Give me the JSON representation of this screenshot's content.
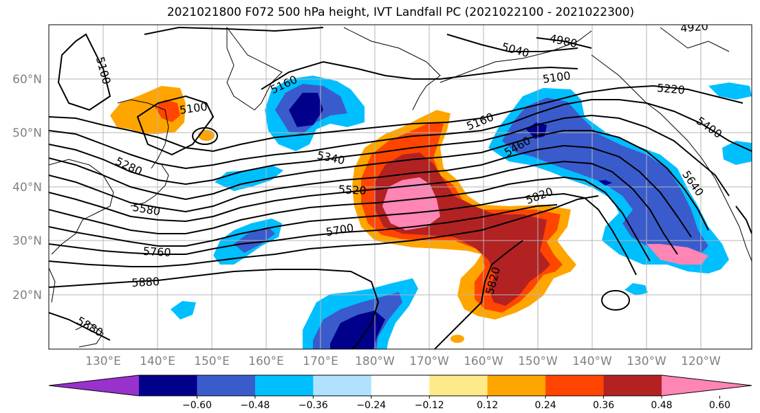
{
  "title": "2021021800 F072 500 hPa height, IVT Landfall PC (2021022100 - 2021022300)",
  "lat_labels": [
    "60°N",
    "50°N",
    "40°N",
    "30°N",
    "20°N"
  ],
  "lon_labels": [
    "130°E",
    "140°E",
    "150°E",
    "160°E",
    "170°E",
    "180°W",
    "170°W",
    "160°W",
    "150°W",
    "140°W",
    "130°W",
    "120°W"
  ],
  "contour_labels": {
    "c5100a": "5100",
    "c5100b": "5100",
    "c5160": "5160",
    "c5040": "5040",
    "c4980": "4980",
    "c5100c": "5100",
    "c5220": "5220",
    "c5400": "5400",
    "c5160b": "5160",
    "c5460": "5460",
    "c5340": "5340",
    "c5280": "5280",
    "c5520": "5520",
    "c5580": "5580",
    "c5700": "5700",
    "c5820a": "5820",
    "c5640": "5640",
    "c5760": "5760",
    "c5880a": "5880",
    "c5820b": "5820",
    "c5880b": "5880",
    "c4920": "4920"
  },
  "colorbar": {
    "ticks": [
      "−0.60",
      "−0.48",
      "−0.36",
      "−0.24",
      "−0.12",
      "0.12",
      "0.24",
      "0.36",
      "0.48",
      "0.60"
    ],
    "colors": [
      "#9932cc",
      "#00008b",
      "#3a5bcc",
      "#00bfff",
      "#b0e2ff",
      "#ffffff",
      "#ffea8a",
      "#ffa500",
      "#ff4500",
      "#b22222",
      "#ff85b5"
    ]
  }
}
